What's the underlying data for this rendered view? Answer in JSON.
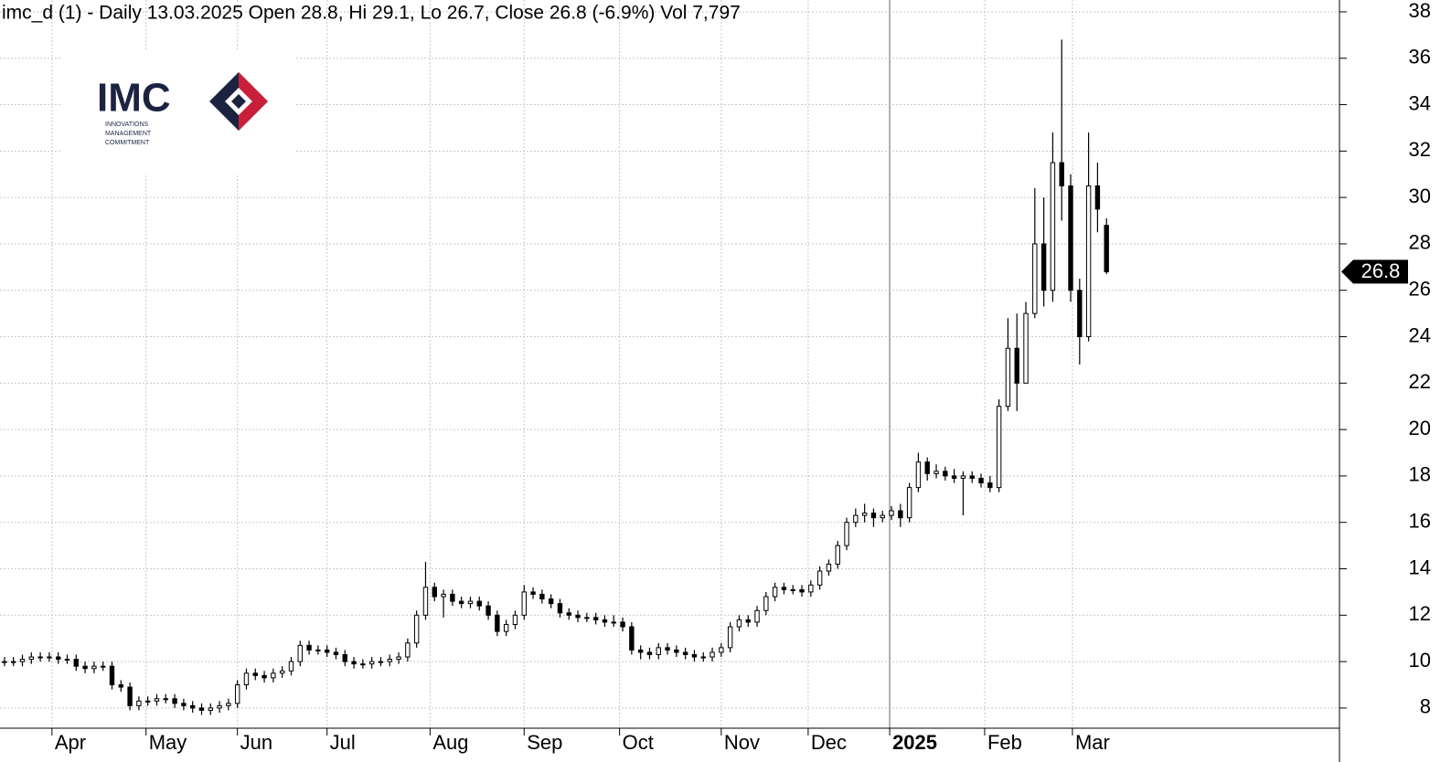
{
  "logo": {
    "name": "IMC",
    "lines": [
      "INNOVATIONS",
      "MANAGEMENT",
      "COMMITMENT"
    ]
  },
  "chart_data": {
    "type": "candlestick",
    "title": "imc_d (1) - Daily 13.03.2025 Open 28.8, Hi 29.1, Lo 26.7, Close 26.8 (-6.9%) Vol 7,797",
    "x": [
      0,
      2,
      4,
      6,
      8,
      10,
      12,
      14,
      16,
      18,
      20,
      22,
      24,
      26,
      28,
      30,
      32,
      34,
      36,
      38,
      40,
      42,
      44,
      46,
      48,
      50,
      52,
      54,
      56,
      58,
      60,
      62,
      64,
      66,
      68,
      70,
      72,
      74,
      76,
      78,
      80,
      82,
      84,
      86,
      88,
      90,
      92,
      94,
      96,
      98,
      100,
      102,
      104,
      106,
      108,
      110,
      112,
      114,
      116,
      118,
      120,
      122,
      124,
      126,
      128,
      130,
      132,
      134,
      136,
      138,
      140,
      142,
      144,
      146,
      148,
      150,
      152,
      154,
      156,
      158,
      160,
      162,
      164,
      166,
      168,
      170,
      172,
      174,
      176,
      178,
      180,
      182,
      184,
      186,
      188,
      190,
      192,
      194,
      196,
      198,
      200,
      202,
      204,
      206,
      208,
      210,
      212,
      214,
      216,
      218,
      220,
      222,
      224,
      226,
      228,
      230,
      232,
      234,
      236,
      238,
      240,
      242,
      244,
      246
    ],
    "open": [
      10.0,
      10.0,
      10.0,
      10.1,
      10.2,
      10.2,
      10.2,
      10.1,
      10.1,
      9.8,
      9.7,
      9.8,
      9.8,
      9.0,
      8.9,
      8.1,
      8.3,
      8.3,
      8.4,
      8.4,
      8.2,
      8.1,
      8.0,
      7.9,
      8.0,
      8.1,
      8.2,
      9.0,
      9.5,
      9.4,
      9.3,
      9.5,
      9.6,
      10.0,
      10.7,
      10.5,
      10.5,
      10.4,
      10.3,
      10.0,
      9.9,
      9.9,
      10.0,
      10.0,
      10.1,
      10.2,
      10.8,
      12.0,
      13.2,
      12.8,
      12.9,
      12.6,
      12.5,
      12.6,
      12.4,
      12.0,
      11.3,
      11.6,
      12.0,
      13.0,
      12.9,
      12.7,
      12.5,
      12.1,
      12.0,
      11.9,
      11.9,
      11.8,
      11.7,
      11.7,
      11.5,
      10.5,
      10.4,
      10.3,
      10.6,
      10.5,
      10.4,
      10.3,
      10.2,
      10.2,
      10.4,
      10.6,
      11.5,
      11.8,
      11.7,
      12.2,
      12.8,
      13.2,
      13.1,
      13.1,
      13.0,
      13.3,
      13.9,
      14.2,
      15.0,
      16.0,
      16.3,
      16.4,
      16.2,
      16.3,
      16.5,
      16.2,
      17.5,
      18.6,
      18.1,
      18.2,
      18.0,
      17.9,
      18.0,
      17.9,
      17.7,
      17.5,
      21.0,
      23.5,
      22.0,
      25.0,
      28.0,
      26.0,
      31.5,
      30.5,
      26.0,
      24.0,
      30.5,
      28.8
    ],
    "high": [
      10.2,
      10.2,
      10.3,
      10.4,
      10.4,
      10.4,
      10.4,
      10.3,
      10.3,
      10.0,
      10.0,
      10.0,
      10.0,
      9.2,
      9.1,
      8.5,
      8.5,
      8.6,
      8.6,
      8.6,
      8.4,
      8.3,
      8.2,
      8.2,
      8.3,
      8.4,
      9.2,
      9.7,
      9.7,
      9.6,
      9.7,
      9.8,
      10.2,
      10.9,
      10.9,
      10.7,
      10.7,
      10.6,
      10.5,
      10.2,
      10.1,
      10.2,
      10.2,
      10.3,
      10.4,
      11.0,
      12.2,
      14.3,
      13.4,
      13.1,
      13.1,
      12.8,
      12.8,
      12.8,
      12.6,
      12.2,
      11.8,
      12.2,
      13.3,
      13.2,
      13.1,
      12.9,
      12.7,
      12.3,
      12.2,
      12.1,
      12.1,
      12.0,
      12.0,
      11.9,
      11.7,
      10.7,
      10.6,
      10.8,
      10.8,
      10.7,
      10.6,
      10.5,
      10.4,
      10.6,
      10.8,
      11.7,
      12.0,
      12.0,
      12.4,
      13.0,
      13.4,
      13.4,
      13.3,
      13.3,
      13.5,
      14.1,
      14.4,
      15.2,
      16.2,
      16.6,
      16.8,
      16.6,
      16.5,
      16.7,
      16.8,
      17.7,
      19.0,
      18.8,
      18.5,
      18.4,
      18.3,
      18.2,
      18.2,
      18.1,
      18.0,
      21.3,
      24.8,
      25.0,
      25.5,
      30.4,
      30.0,
      32.8,
      36.8,
      31.0,
      26.5,
      32.8,
      31.5,
      29.1
    ],
    "low": [
      9.8,
      9.8,
      9.8,
      9.9,
      10.0,
      10.0,
      9.9,
      9.9,
      9.6,
      9.5,
      9.5,
      9.6,
      8.8,
      8.7,
      7.9,
      7.9,
      8.1,
      8.1,
      8.2,
      8.0,
      7.9,
      7.8,
      7.7,
      7.7,
      7.8,
      7.9,
      8.0,
      8.8,
      9.2,
      9.1,
      9.1,
      9.3,
      9.4,
      9.8,
      10.3,
      10.3,
      10.2,
      10.1,
      9.8,
      9.7,
      9.7,
      9.7,
      9.8,
      9.8,
      9.9,
      10.0,
      10.6,
      11.8,
      12.6,
      11.9,
      12.4,
      12.3,
      12.3,
      12.2,
      11.8,
      11.1,
      11.1,
      11.4,
      11.8,
      12.7,
      12.5,
      12.3,
      11.9,
      11.8,
      11.7,
      11.7,
      11.6,
      11.5,
      11.5,
      11.3,
      10.3,
      10.1,
      10.1,
      10.1,
      10.3,
      10.2,
      10.1,
      10.0,
      10.0,
      10.0,
      10.2,
      10.4,
      11.3,
      11.5,
      11.5,
      12.0,
      12.6,
      12.9,
      12.9,
      12.8,
      12.8,
      13.1,
      13.7,
      14.0,
      14.8,
      15.8,
      16.0,
      15.8,
      16.0,
      16.1,
      15.8,
      16.0,
      17.3,
      17.8,
      17.9,
      17.8,
      17.7,
      16.3,
      17.7,
      17.5,
      17.3,
      17.3,
      20.8,
      20.8,
      22.2,
      24.8,
      25.3,
      25.5,
      29.0,
      25.5,
      22.8,
      23.8,
      28.5,
      26.7
    ],
    "close": [
      10.0,
      10.0,
      10.1,
      10.2,
      10.2,
      10.2,
      10.1,
      10.1,
      9.8,
      9.7,
      9.8,
      9.8,
      9.0,
      8.9,
      8.1,
      8.3,
      8.3,
      8.4,
      8.4,
      8.2,
      8.1,
      8.0,
      7.9,
      8.0,
      8.1,
      8.2,
      9.0,
      9.5,
      9.4,
      9.3,
      9.5,
      9.6,
      10.0,
      10.7,
      10.5,
      10.5,
      10.4,
      10.3,
      10.0,
      9.9,
      9.9,
      10.0,
      10.0,
      10.1,
      10.2,
      10.8,
      12.0,
      13.2,
      12.8,
      12.9,
      12.6,
      12.5,
      12.6,
      12.4,
      12.0,
      11.3,
      11.6,
      12.0,
      13.0,
      12.9,
      12.7,
      12.5,
      12.1,
      12.0,
      11.9,
      11.9,
      11.8,
      11.7,
      11.7,
      11.5,
      10.5,
      10.4,
      10.3,
      10.6,
      10.5,
      10.4,
      10.3,
      10.2,
      10.2,
      10.4,
      10.6,
      11.5,
      11.8,
      11.7,
      12.2,
      12.8,
      13.2,
      13.1,
      13.1,
      13.0,
      13.3,
      13.9,
      14.2,
      15.0,
      16.0,
      16.3,
      16.4,
      16.2,
      16.3,
      16.5,
      16.2,
      17.5,
      18.6,
      18.1,
      18.2,
      18.0,
      17.9,
      18.0,
      17.9,
      17.7,
      17.5,
      21.0,
      23.5,
      22.0,
      25.0,
      28.0,
      26.0,
      31.5,
      30.5,
      26.0,
      24.0,
      30.5,
      29.5,
      26.8
    ],
    "xlim": [
      -1,
      298
    ],
    "xticks": [
      {
        "value": 10.6,
        "label": "Apr"
      },
      {
        "value": 31.6,
        "label": "May"
      },
      {
        "value": 52,
        "label": "Jun"
      },
      {
        "value": 72,
        "label": "Jul"
      },
      {
        "value": 95,
        "label": "Aug"
      },
      {
        "value": 116,
        "label": "Sep"
      },
      {
        "value": 137.3,
        "label": "Oct"
      },
      {
        "value": 160,
        "label": "Nov"
      },
      {
        "value": 179.4,
        "label": "Dec"
      },
      {
        "value": 197.6,
        "label": "2025",
        "bold": true
      },
      {
        "value": 218.8,
        "label": "Feb"
      },
      {
        "value": 238.4,
        "label": "Mar"
      }
    ],
    "ylim": [
      7.13,
      38.51
    ],
    "yticks": [
      8,
      10,
      12,
      14,
      16,
      18,
      20,
      22,
      24,
      26,
      28,
      30,
      32,
      34,
      36,
      38
    ],
    "grid": true,
    "up_color": "#ffffff",
    "down_color": "#000000"
  }
}
